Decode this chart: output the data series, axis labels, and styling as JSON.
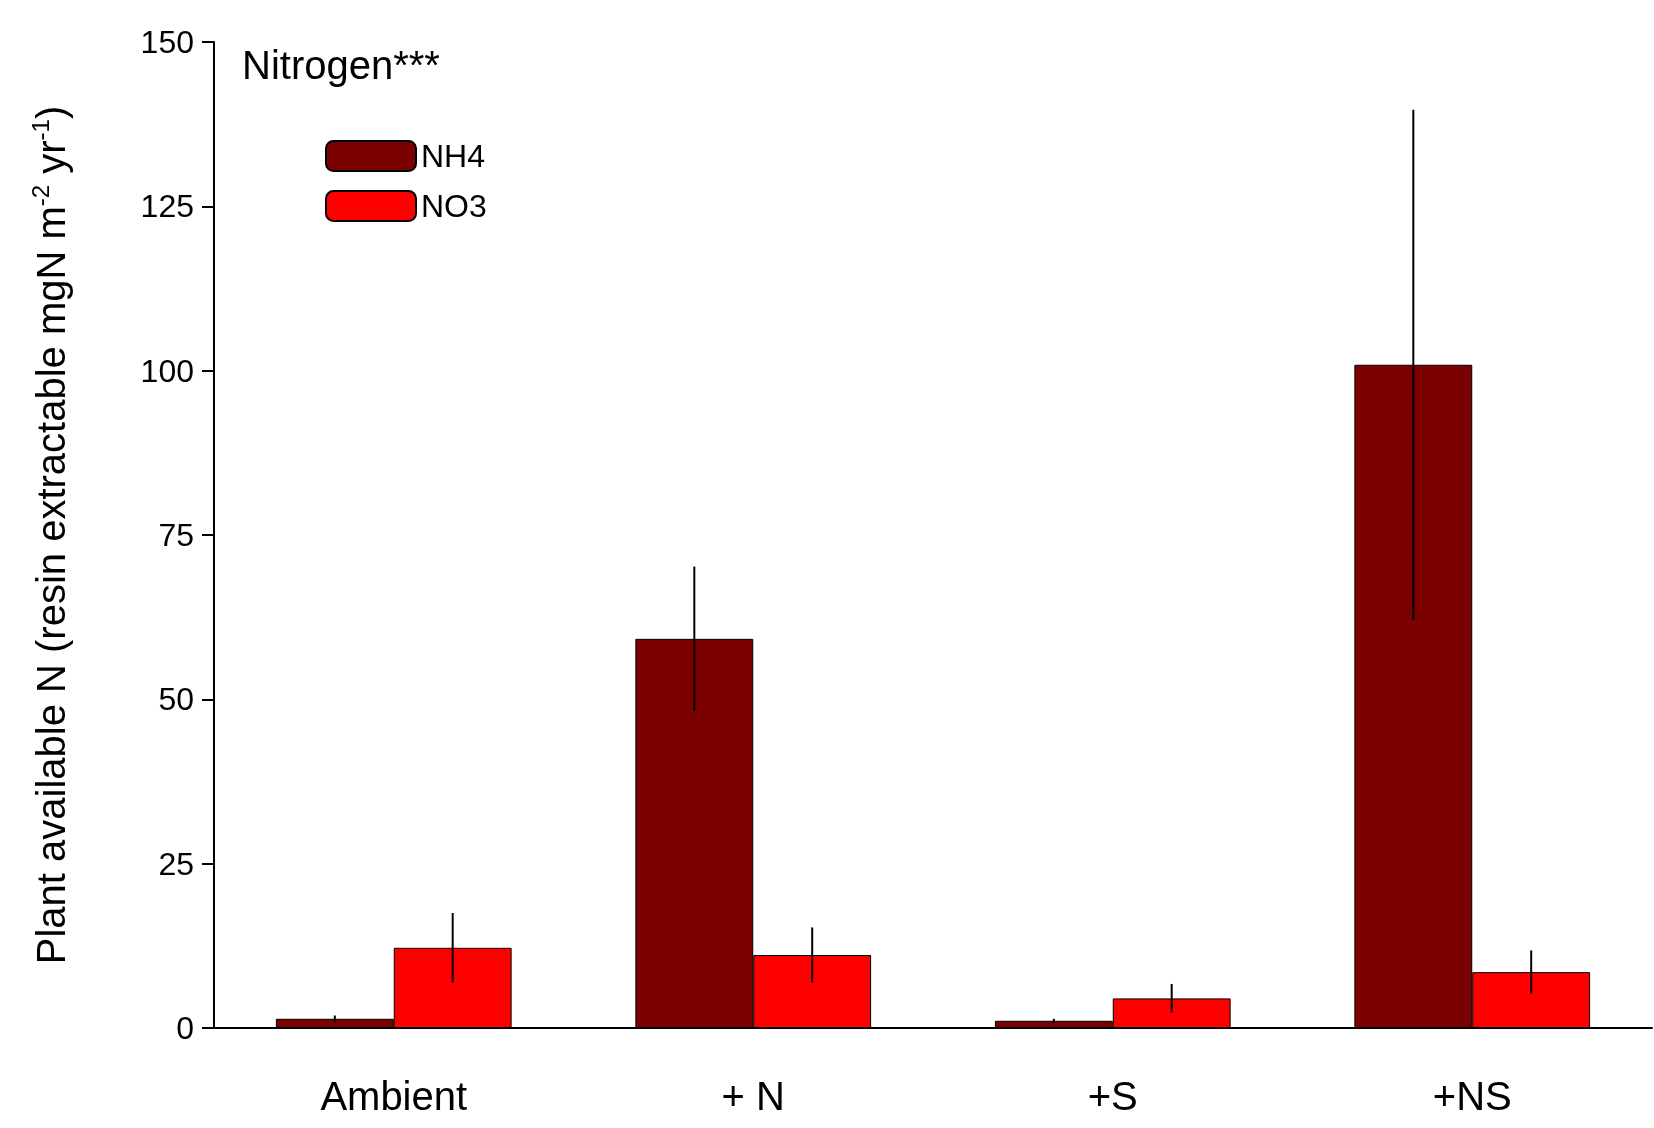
{
  "chart_data": {
    "type": "bar",
    "ylabel": "Plant available N (resin extractable mgN m$^{-2}$ yr$^{-1}$)",
    "annotations": [
      "Nitrogen***"
    ],
    "categories": [
      "Ambient",
      "+ N",
      "+S",
      "+NS"
    ],
    "series": [
      {
        "name": "NH4",
        "color": "#7b0000",
        "values": [
          1.4,
          59.2,
          1.1,
          100.9
        ],
        "errors": [
          0.5,
          11,
          0.3,
          38.8
        ]
      },
      {
        "name": "NO3",
        "color": "#ff0000",
        "values": [
          12.2,
          11.1,
          4.5,
          8.5
        ],
        "errors": [
          5.3,
          4.2,
          2.2,
          3.3
        ]
      }
    ],
    "ylim": [
      0,
      150
    ],
    "yticks": [
      0,
      25,
      50,
      75,
      100,
      125,
      150
    ],
    "grid": false,
    "legend": "top left"
  }
}
